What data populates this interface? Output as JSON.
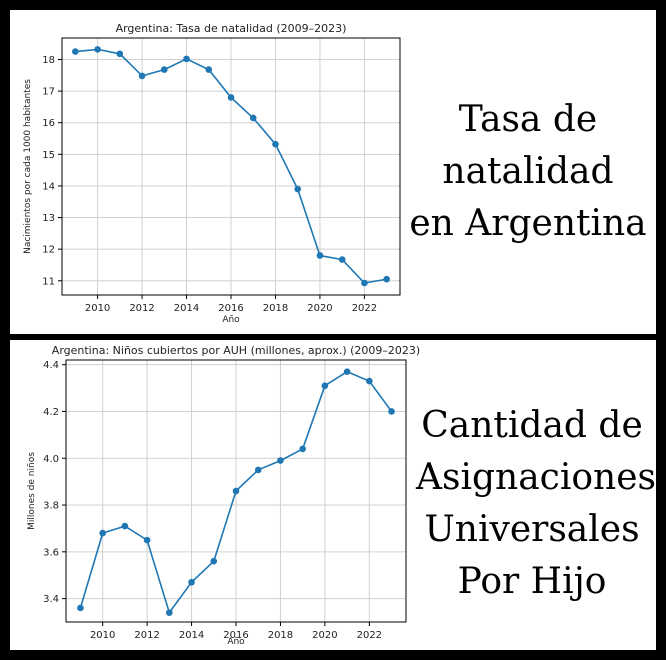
{
  "captions": {
    "top": [
      "Tasa de",
      "natalidad",
      "en Argentina"
    ],
    "bottom": [
      "Cantidad de",
      "Asignaciones",
      "Universales",
      "Por Hijo"
    ]
  },
  "colors": {
    "line": "#1f77b4",
    "grid": "#d0d0d0",
    "frame": "#000000",
    "panel_border": "#000000"
  },
  "chart_data": [
    {
      "type": "line",
      "title": "Argentina: Tasa de natalidad (2009–2023)",
      "xlabel": "Año",
      "ylabel": "Nacimientos por cada 1000 habitantes",
      "x": [
        2009,
        2010,
        2011,
        2012,
        2013,
        2014,
        2015,
        2016,
        2017,
        2018,
        2019,
        2020,
        2021,
        2022,
        2023
      ],
      "y": [
        18.25,
        18.32,
        18.18,
        17.48,
        17.68,
        18.02,
        17.68,
        16.8,
        16.15,
        15.32,
        13.9,
        11.8,
        11.67,
        10.93,
        11.05
      ],
      "xticks": [
        2010,
        2012,
        2014,
        2016,
        2018,
        2020,
        2022
      ],
      "yticks": [
        11,
        12,
        13,
        14,
        15,
        16,
        17,
        18
      ],
      "xlim": [
        2008.4,
        2023.6
      ],
      "ylim": [
        10.55,
        18.68
      ],
      "grid": true,
      "legend": "none"
    },
    {
      "type": "line",
      "title": "Argentina: Niños cubiertos por AUH (millones, aprox.) (2009–2023)",
      "xlabel": "Año",
      "ylabel": "Millones de niños",
      "x": [
        2009,
        2010,
        2011,
        2012,
        2013,
        2014,
        2015,
        2016,
        2017,
        2018,
        2019,
        2020,
        2021,
        2022,
        2023
      ],
      "y": [
        3.36,
        3.68,
        3.71,
        3.65,
        3.34,
        3.47,
        3.56,
        3.86,
        3.95,
        3.99,
        4.04,
        4.31,
        4.37,
        4.33,
        4.2
      ],
      "xticks": [
        2010,
        2012,
        2014,
        2016,
        2018,
        2020,
        2022
      ],
      "yticks": [
        3.4,
        3.6,
        3.8,
        4.0,
        4.2,
        4.4
      ],
      "xlim": [
        2008.35,
        2023.65
      ],
      "ylim": [
        3.3,
        4.42
      ],
      "grid": true,
      "legend": "none"
    }
  ]
}
